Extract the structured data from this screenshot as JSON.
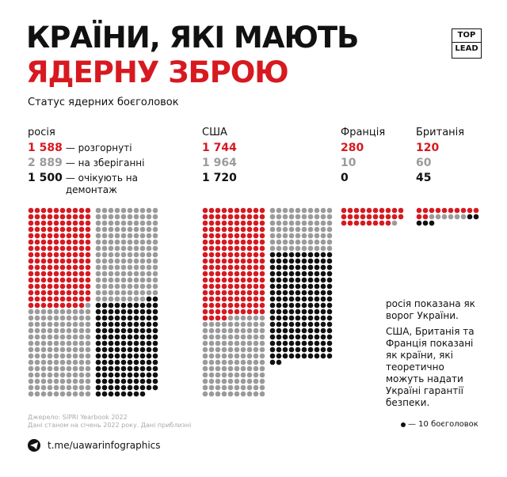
{
  "title_line1": "КРАЇНИ, ЯКІ МАЮТЬ",
  "title_line2": "ЯДЕРНУ ЗБРОЮ",
  "logo": [
    "TOP",
    "LEAD"
  ],
  "subtitle": "Статус ядерних боєголовок",
  "status_colors": [
    "#d71920",
    "#9b9b9b",
    "#111111"
  ],
  "countries": [
    {
      "name": "росія",
      "stats": [
        {
          "value": {
            "value": 1588,
            "label": "1 588"
          },
          "note": "— розгорнуті"
        },
        {
          "value": {
            "value": 2889,
            "label": "2 889"
          },
          "note": "— на зберіганні"
        },
        {
          "value": {
            "value": 1500,
            "label": "1 500"
          },
          "note": "— очікують на демонтаж"
        }
      ]
    },
    {
      "name": "США",
      "stats": [
        {
          "value": {
            "value": 1744,
            "label": "1 744"
          }
        },
        {
          "value": {
            "value": 1964,
            "label": "1 964"
          }
        },
        {
          "value": {
            "value": 1720,
            "label": "1 720"
          }
        }
      ]
    },
    {
      "name": "Франція",
      "stats": [
        {
          "value": 280
        },
        {
          "value": 10
        },
        {
          "value": 0
        }
      ]
    },
    {
      "name": "Британія",
      "stats": [
        {
          "value": 120
        },
        {
          "value": 60
        },
        {
          "value": 45
        }
      ]
    }
  ],
  "dot_unit": {
    "value": 10,
    "label": "— 10 боєголовок"
  },
  "notes": [
    "росія показана як ворог України.",
    "США, Британія та Франція показані як країни, які теоретично можуть надати Україні гарантії безпеки."
  ],
  "source": [
    "Джерело: SIPRI Yearbook 2022",
    "Дані станом на січень 2022 року. Дані приблизні"
  ],
  "footer": "t.me/uawarinfographics"
}
